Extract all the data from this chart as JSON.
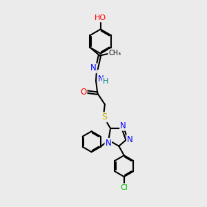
{
  "background_color": "#ebebeb",
  "atom_colors": {
    "C": "#000000",
    "N": "#0000ff",
    "O": "#ff0000",
    "S": "#ccaa00",
    "Cl": "#00bb00",
    "H": "#008080"
  },
  "bond_color": "#000000",
  "bond_width": 1.5
}
